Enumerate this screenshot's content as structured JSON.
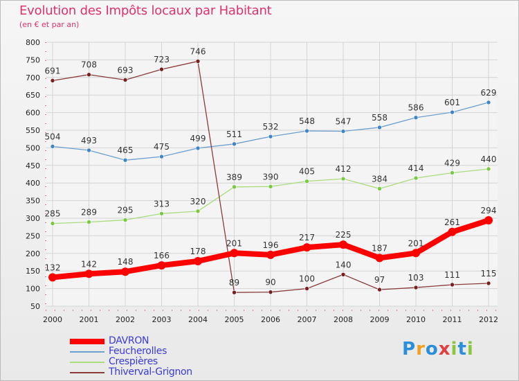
{
  "title": "Evolution des Impôts locaux par Habitant",
  "subtitle": "(en € et par an)",
  "logo": {
    "text": "Proxiti",
    "letters": [
      {
        "ch": "P",
        "color": "#2a8fd6"
      },
      {
        "ch": "r",
        "color": "#f0a020"
      },
      {
        "ch": "o",
        "color": "#2a8fd6"
      },
      {
        "ch": "x",
        "color": "#e04040"
      },
      {
        "ch": "i",
        "color": "#8cc63f"
      },
      {
        "ch": "t",
        "color": "#2a8fd6"
      },
      {
        "ch": "i",
        "color": "#8cc63f"
      }
    ]
  },
  "chart_data": {
    "type": "line",
    "x": [
      "2000",
      "2001",
      "2002",
      "2003",
      "2004",
      "2005",
      "2006",
      "2007",
      "2008",
      "2009",
      "2010",
      "2011",
      "2012"
    ],
    "ylim": [
      50,
      800
    ],
    "yticks": [
      50,
      100,
      150,
      200,
      250,
      300,
      350,
      400,
      450,
      500,
      550,
      600,
      650,
      700,
      750,
      800
    ],
    "grid": true,
    "legend_position": "bottom-left",
    "series": [
      {
        "name": "DAVRON",
        "color": "#ff0000",
        "emphasis": true,
        "values": [
          132,
          142,
          148,
          166,
          178,
          201,
          196,
          217,
          225,
          187,
          201,
          261,
          294
        ]
      },
      {
        "name": "Feucherolles",
        "color": "#6a9fd0",
        "marker": "#3d85c6",
        "values": [
          504,
          493,
          465,
          475,
          499,
          511,
          532,
          548,
          547,
          558,
          586,
          601,
          629
        ]
      },
      {
        "name": "Crespières",
        "color": "#a8dc7c",
        "marker": "#7ac943",
        "values": [
          285,
          289,
          295,
          313,
          320,
          389,
          390,
          405,
          412,
          384,
          414,
          429,
          440
        ]
      },
      {
        "name": "Thiverval-Grignon",
        "color": "#8b3a3a",
        "marker": "#7a1f1f",
        "values": [
          691,
          708,
          693,
          723,
          746,
          89,
          90,
          100,
          140,
          97,
          103,
          111,
          115
        ]
      }
    ]
  }
}
